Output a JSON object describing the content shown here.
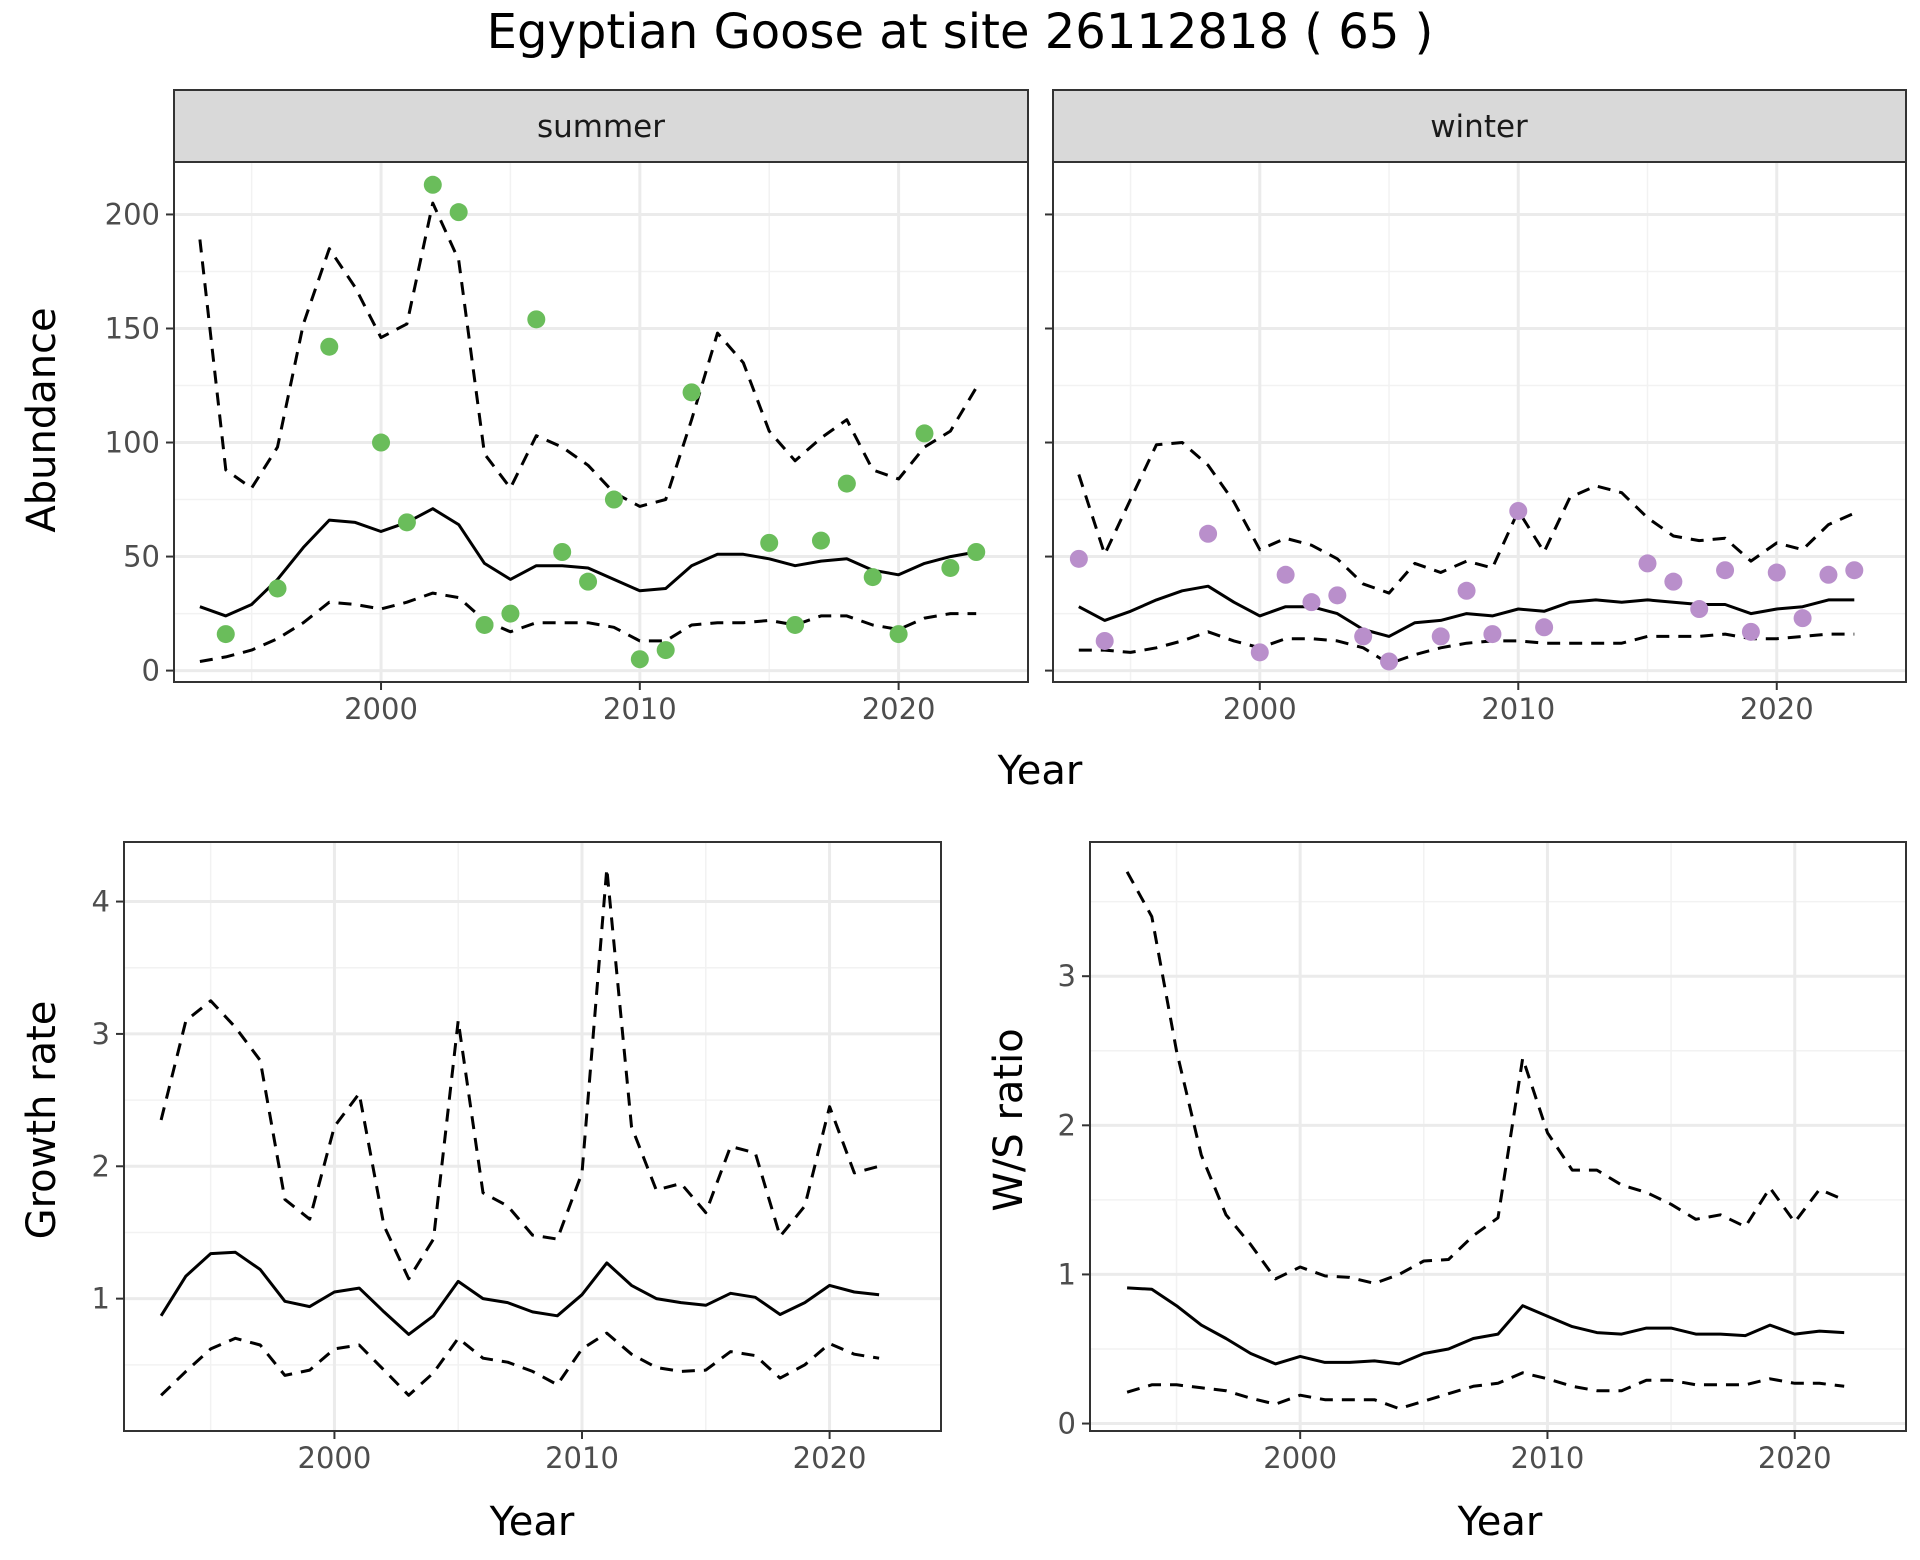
{
  "title": "Egyptian Goose at site 26112818 ( 65 )",
  "colors": {
    "summer_points": "#6abd5b",
    "winter_points": "#b98fcb",
    "lines": "#000000",
    "strip_bg": "#d9d9d9",
    "grid": "#ebebeb"
  },
  "chart_data": [
    {
      "type": "scatter",
      "panel": "summer",
      "xlabel": "Year",
      "ylabel": "Abundance",
      "xlim": [
        1992,
        2025
      ],
      "ylim": [
        -5,
        223
      ],
      "xticks": [
        2000,
        2010,
        2020
      ],
      "yticks": [
        0,
        50,
        100,
        150,
        200
      ],
      "grid": true,
      "points": {
        "x": [
          1994,
          1996,
          1998,
          2000,
          2001,
          2002,
          2003,
          2004,
          2005,
          2006,
          2007,
          2008,
          2009,
          2010,
          2011,
          2012,
          2015,
          2016,
          2017,
          2018,
          2019,
          2020,
          2021,
          2022,
          2023
        ],
        "y": [
          16,
          36,
          142,
          100,
          65,
          213,
          201,
          20,
          25,
          154,
          52,
          39,
          75,
          5,
          9,
          122,
          56,
          20,
          57,
          82,
          41,
          16,
          104,
          45,
          52
        ]
      },
      "series": [
        {
          "style": "solid",
          "x": [
            1993,
            1994,
            1995,
            1996,
            1997,
            1998,
            1999,
            2000,
            2001,
            2002,
            2003,
            2004,
            2005,
            2006,
            2007,
            2008,
            2009,
            2010,
            2011,
            2012,
            2013,
            2014,
            2015,
            2016,
            2017,
            2018,
            2019,
            2020,
            2021,
            2022,
            2023
          ],
          "y": [
            28,
            24,
            29,
            40,
            54,
            66,
            65,
            61,
            65,
            71,
            64,
            47,
            40,
            46,
            46,
            45,
            40,
            35,
            36,
            46,
            51,
            51,
            49,
            46,
            48,
            49,
            44,
            42,
            47,
            50,
            52
          ]
        },
        {
          "style": "dashed",
          "x": [
            1993,
            1994,
            1995,
            1996,
            1997,
            1998,
            1999,
            2000,
            2001,
            2002,
            2003,
            2004,
            2005,
            2006,
            2007,
            2008,
            2009,
            2010,
            2011,
            2012,
            2013,
            2014,
            2015,
            2016,
            2017,
            2018,
            2019,
            2020,
            2021,
            2022,
            2023
          ],
          "y": [
            189,
            88,
            80,
            98,
            152,
            185,
            168,
            146,
            152,
            205,
            180,
            95,
            80,
            103,
            98,
            90,
            78,
            72,
            75,
            110,
            148,
            135,
            105,
            92,
            102,
            110,
            88,
            84,
            98,
            105,
            124
          ]
        },
        {
          "style": "dashed",
          "x": [
            1993,
            1994,
            1995,
            1996,
            1997,
            1998,
            1999,
            2000,
            2001,
            2002,
            2003,
            2004,
            2005,
            2006,
            2007,
            2008,
            2009,
            2010,
            2011,
            2012,
            2013,
            2014,
            2015,
            2016,
            2017,
            2018,
            2019,
            2020,
            2021,
            2022,
            2023
          ],
          "y": [
            4,
            6,
            9,
            14,
            21,
            30,
            29,
            27,
            30,
            34,
            32,
            22,
            17,
            21,
            21,
            21,
            19,
            13,
            13,
            20,
            21,
            21,
            22,
            20,
            24,
            24,
            20,
            18,
            23,
            25,
            25
          ]
        }
      ]
    },
    {
      "type": "scatter",
      "panel": "winter",
      "xlabel": "Year",
      "ylabel": "Abundance",
      "xlim": [
        1992,
        2025
      ],
      "ylim": [
        -5,
        223
      ],
      "xticks": [
        2000,
        2010,
        2020
      ],
      "yticks": [
        0,
        50,
        100,
        150,
        200
      ],
      "grid": true,
      "points": {
        "x": [
          1993,
          1994,
          1998,
          2000,
          2001,
          2002,
          2003,
          2004,
          2005,
          2007,
          2008,
          2009,
          2010,
          2011,
          2015,
          2016,
          2017,
          2018,
          2019,
          2020,
          2021,
          2022,
          2023
        ],
        "y": [
          49,
          13,
          60,
          8,
          42,
          30,
          33,
          15,
          4,
          15,
          35,
          16,
          70,
          19,
          47,
          39,
          27,
          44,
          17,
          43,
          23,
          42,
          44
        ]
      },
      "series": [
        {
          "style": "solid",
          "x": [
            1993,
            1994,
            1995,
            1996,
            1997,
            1998,
            1999,
            2000,
            2001,
            2002,
            2003,
            2004,
            2005,
            2006,
            2007,
            2008,
            2009,
            2010,
            2011,
            2012,
            2013,
            2014,
            2015,
            2016,
            2017,
            2018,
            2019,
            2020,
            2021,
            2022,
            2023
          ],
          "y": [
            28,
            22,
            26,
            31,
            35,
            37,
            30,
            24,
            28,
            28,
            25,
            18,
            15,
            21,
            22,
            25,
            24,
            27,
            26,
            30,
            31,
            30,
            31,
            30,
            29,
            29,
            25,
            27,
            28,
            31,
            31
          ]
        },
        {
          "style": "dashed",
          "x": [
            1993,
            1994,
            1995,
            1996,
            1997,
            1998,
            1999,
            2000,
            2001,
            2002,
            2003,
            2004,
            2005,
            2006,
            2007,
            2008,
            2009,
            2010,
            2011,
            2012,
            2013,
            2014,
            2015,
            2016,
            2017,
            2018,
            2019,
            2020,
            2021,
            2022,
            2023
          ],
          "y": [
            86,
            51,
            75,
            99,
            100,
            90,
            74,
            53,
            58,
            55,
            49,
            38,
            34,
            47,
            43,
            48,
            45,
            70,
            52,
            76,
            81,
            78,
            67,
            59,
            57,
            58,
            48,
            56,
            53,
            64,
            69
          ]
        },
        {
          "style": "dashed",
          "x": [
            1993,
            1994,
            1995,
            1996,
            1997,
            1998,
            1999,
            2000,
            2001,
            2002,
            2003,
            2004,
            2005,
            2006,
            2007,
            2008,
            2009,
            2010,
            2011,
            2012,
            2013,
            2014,
            2015,
            2016,
            2017,
            2018,
            2019,
            2020,
            2021,
            2022,
            2023
          ],
          "y": [
            9,
            9,
            8,
            10,
            13,
            17,
            13,
            10,
            14,
            14,
            13,
            10,
            3,
            7,
            10,
            12,
            13,
            13,
            12,
            12,
            12,
            12,
            15,
            15,
            15,
            16,
            14,
            14,
            15,
            16,
            16
          ]
        }
      ]
    },
    {
      "type": "line",
      "xlabel": "Year",
      "ylabel": "Growth rate",
      "xlim": [
        1991.5,
        2024.5
      ],
      "ylim": [
        0.0,
        4.45
      ],
      "xticks": [
        2000,
        2010,
        2020
      ],
      "yticks": [
        1,
        2,
        3,
        4
      ],
      "grid": true,
      "series": [
        {
          "style": "solid",
          "x": [
            1993,
            1994,
            1995,
            1996,
            1997,
            1998,
            1999,
            2000,
            2001,
            2002,
            2003,
            2004,
            2005,
            2006,
            2007,
            2008,
            2009,
            2010,
            2011,
            2012,
            2013,
            2014,
            2015,
            2016,
            2017,
            2018,
            2019,
            2020,
            2021,
            2022
          ],
          "y": [
            0.87,
            1.17,
            1.34,
            1.35,
            1.22,
            0.98,
            0.94,
            1.05,
            1.08,
            0.9,
            0.73,
            0.87,
            1.13,
            1.0,
            0.97,
            0.9,
            0.87,
            1.03,
            1.27,
            1.1,
            1.0,
            0.97,
            0.95,
            1.04,
            1.01,
            0.88,
            0.97,
            1.1,
            1.05,
            1.03
          ]
        },
        {
          "style": "dashed",
          "x": [
            1993,
            1994,
            1995,
            1996,
            1997,
            1998,
            1999,
            2000,
            2001,
            2002,
            2003,
            2004,
            2005,
            2006,
            2007,
            2008,
            2009,
            2010,
            2011,
            2012,
            2013,
            2014,
            2015,
            2016,
            2017,
            2018,
            2019,
            2020,
            2021,
            2022
          ],
          "y": [
            2.35,
            3.1,
            3.25,
            3.05,
            2.8,
            1.75,
            1.6,
            2.3,
            2.55,
            1.55,
            1.15,
            1.45,
            3.1,
            1.8,
            1.7,
            1.48,
            1.45,
            1.95,
            4.25,
            2.3,
            1.82,
            1.87,
            1.65,
            2.15,
            2.1,
            1.47,
            1.7,
            2.45,
            1.95,
            2.0
          ]
        },
        {
          "style": "dashed",
          "x": [
            1993,
            1994,
            1995,
            1996,
            1997,
            1998,
            1999,
            2000,
            2001,
            2002,
            2003,
            2004,
            2005,
            2006,
            2007,
            2008,
            2009,
            2010,
            2011,
            2012,
            2013,
            2014,
            2015,
            2016,
            2017,
            2018,
            2019,
            2020,
            2021,
            2022
          ],
          "y": [
            0.27,
            0.45,
            0.62,
            0.7,
            0.65,
            0.42,
            0.46,
            0.62,
            0.65,
            0.46,
            0.27,
            0.44,
            0.7,
            0.55,
            0.52,
            0.45,
            0.35,
            0.62,
            0.74,
            0.58,
            0.48,
            0.45,
            0.46,
            0.6,
            0.57,
            0.4,
            0.5,
            0.66,
            0.58,
            0.55
          ]
        }
      ]
    },
    {
      "type": "line",
      "xlabel": "Year",
      "ylabel": "W/S ratio",
      "xlim": [
        1991.5,
        2024.5
      ],
      "ylim": [
        -0.05,
        3.9
      ],
      "xticks": [
        2000,
        2010,
        2020
      ],
      "yticks": [
        0,
        1,
        2,
        3
      ],
      "grid": true,
      "series": [
        {
          "style": "solid",
          "x": [
            1993,
            1994,
            1995,
            1996,
            1997,
            1998,
            1999,
            2000,
            2001,
            2002,
            2003,
            2004,
            2005,
            2006,
            2007,
            2008,
            2009,
            2010,
            2011,
            2012,
            2013,
            2014,
            2015,
            2016,
            2017,
            2018,
            2019,
            2020,
            2021,
            2022
          ],
          "y": [
            0.91,
            0.9,
            0.79,
            0.66,
            0.57,
            0.47,
            0.4,
            0.45,
            0.41,
            0.41,
            0.42,
            0.4,
            0.47,
            0.5,
            0.57,
            0.6,
            0.79,
            0.72,
            0.65,
            0.61,
            0.6,
            0.64,
            0.64,
            0.6,
            0.6,
            0.59,
            0.66,
            0.6,
            0.62,
            0.61
          ]
        },
        {
          "style": "dashed",
          "x": [
            1993,
            1994,
            1995,
            1996,
            1997,
            1998,
            1999,
            2000,
            2001,
            2002,
            2003,
            2004,
            2005,
            2006,
            2007,
            2008,
            2009,
            2010,
            2011,
            2012,
            2013,
            2014,
            2015,
            2016,
            2017,
            2018,
            2019,
            2020,
            2021,
            2022
          ],
          "y": [
            3.7,
            3.4,
            2.5,
            1.8,
            1.4,
            1.2,
            0.97,
            1.05,
            0.99,
            0.98,
            0.94,
            1.0,
            1.09,
            1.1,
            1.26,
            1.38,
            2.45,
            1.95,
            1.7,
            1.7,
            1.6,
            1.55,
            1.47,
            1.37,
            1.4,
            1.32,
            1.58,
            1.35,
            1.57,
            1.5
          ]
        },
        {
          "style": "dashed",
          "x": [
            1993,
            1994,
            1995,
            1996,
            1997,
            1998,
            1999,
            2000,
            2001,
            2002,
            2003,
            2004,
            2005,
            2006,
            2007,
            2008,
            2009,
            2010,
            2011,
            2012,
            2013,
            2014,
            2015,
            2016,
            2017,
            2018,
            2019,
            2020,
            2021,
            2022
          ],
          "y": [
            0.21,
            0.26,
            0.26,
            0.24,
            0.22,
            0.17,
            0.13,
            0.19,
            0.16,
            0.16,
            0.16,
            0.1,
            0.15,
            0.2,
            0.25,
            0.27,
            0.34,
            0.3,
            0.25,
            0.22,
            0.22,
            0.29,
            0.29,
            0.26,
            0.26,
            0.26,
            0.3,
            0.27,
            0.27,
            0.25
          ]
        }
      ]
    }
  ],
  "strips": {
    "summer": "summer",
    "winter": "winter"
  }
}
